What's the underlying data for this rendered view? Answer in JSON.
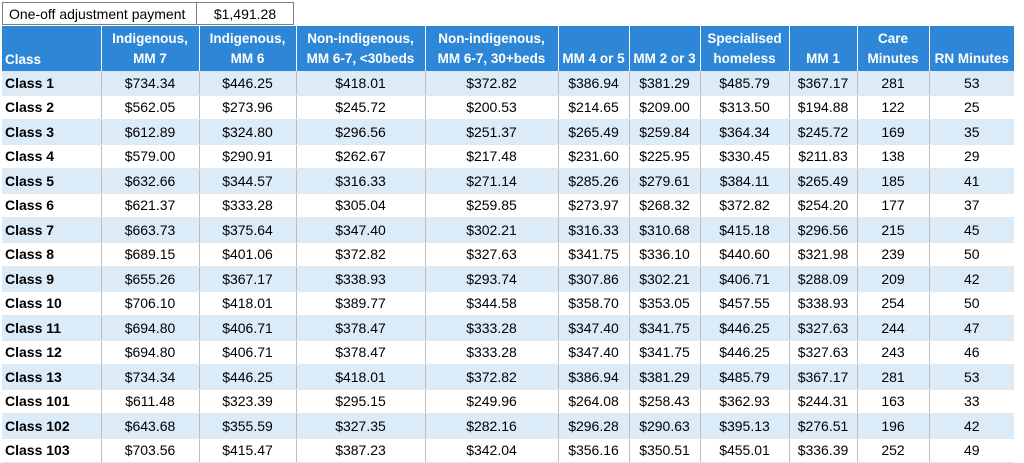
{
  "adjustment": {
    "label": "One-off adjustment payment",
    "value": "$1,491.28"
  },
  "headers": [
    [
      "",
      "Class"
    ],
    [
      "Indigenous,",
      "MM 7"
    ],
    [
      "Indigenous,",
      "MM 6"
    ],
    [
      "Non-indigenous,",
      "MM 6-7, <30beds"
    ],
    [
      "Non-indigenous,",
      "MM 6-7, 30+beds"
    ],
    [
      "",
      "MM 4 or 5"
    ],
    [
      "",
      "MM 2 or 3"
    ],
    [
      "Specialised",
      "homeless"
    ],
    [
      "",
      "MM 1"
    ],
    [
      "Care",
      "Minutes"
    ],
    [
      "",
      "RN Minutes"
    ]
  ],
  "rows": [
    [
      "Class 1",
      "$734.34",
      "$446.25",
      "$418.01",
      "$372.82",
      "$386.94",
      "$381.29",
      "$485.79",
      "$367.17",
      "281",
      "53"
    ],
    [
      "Class 2",
      "$562.05",
      "$273.96",
      "$245.72",
      "$200.53",
      "$214.65",
      "$209.00",
      "$313.50",
      "$194.88",
      "122",
      "25"
    ],
    [
      "Class 3",
      "$612.89",
      "$324.80",
      "$296.56",
      "$251.37",
      "$265.49",
      "$259.84",
      "$364.34",
      "$245.72",
      "169",
      "35"
    ],
    [
      "Class 4",
      "$579.00",
      "$290.91",
      "$262.67",
      "$217.48",
      "$231.60",
      "$225.95",
      "$330.45",
      "$211.83",
      "138",
      "29"
    ],
    [
      "Class 5",
      "$632.66",
      "$344.57",
      "$316.33",
      "$271.14",
      "$285.26",
      "$279.61",
      "$384.11",
      "$265.49",
      "185",
      "41"
    ],
    [
      "Class 6",
      "$621.37",
      "$333.28",
      "$305.04",
      "$259.85",
      "$273.97",
      "$268.32",
      "$372.82",
      "$254.20",
      "177",
      "37"
    ],
    [
      "Class 7",
      "$663.73",
      "$375.64",
      "$347.40",
      "$302.21",
      "$316.33",
      "$310.68",
      "$415.18",
      "$296.56",
      "215",
      "45"
    ],
    [
      "Class 8",
      "$689.15",
      "$401.06",
      "$372.82",
      "$327.63",
      "$341.75",
      "$336.10",
      "$440.60",
      "$321.98",
      "239",
      "50"
    ],
    [
      "Class 9",
      "$655.26",
      "$367.17",
      "$338.93",
      "$293.74",
      "$307.86",
      "$302.21",
      "$406.71",
      "$288.09",
      "209",
      "42"
    ],
    [
      "Class 10",
      "$706.10",
      "$418.01",
      "$389.77",
      "$344.58",
      "$358.70",
      "$353.05",
      "$457.55",
      "$338.93",
      "254",
      "50"
    ],
    [
      "Class 11",
      "$694.80",
      "$406.71",
      "$378.47",
      "$333.28",
      "$347.40",
      "$341.75",
      "$446.25",
      "$327.63",
      "244",
      "47"
    ],
    [
      "Class 12",
      "$694.80",
      "$406.71",
      "$378.47",
      "$333.28",
      "$347.40",
      "$341.75",
      "$446.25",
      "$327.63",
      "243",
      "46"
    ],
    [
      "Class 13",
      "$734.34",
      "$446.25",
      "$418.01",
      "$372.82",
      "$386.94",
      "$381.29",
      "$485.79",
      "$367.17",
      "281",
      "53"
    ],
    [
      "Class 101",
      "$611.48",
      "$323.39",
      "$295.15",
      "$249.96",
      "$264.08",
      "$258.43",
      "$362.93",
      "$244.31",
      "163",
      "33"
    ],
    [
      "Class 102",
      "$643.68",
      "$355.59",
      "$327.35",
      "$282.16",
      "$296.28",
      "$290.63",
      "$395.13",
      "$276.51",
      "196",
      "42"
    ],
    [
      "Class 103",
      "$703.56",
      "$415.47",
      "$387.23",
      "$342.04",
      "$356.16",
      "$350.51",
      "$455.01",
      "$336.39",
      "252",
      "49"
    ]
  ],
  "colors": {
    "header_bg": "#2e86d6",
    "header_text": "#ffffff",
    "band_row": "#dcebf8"
  }
}
